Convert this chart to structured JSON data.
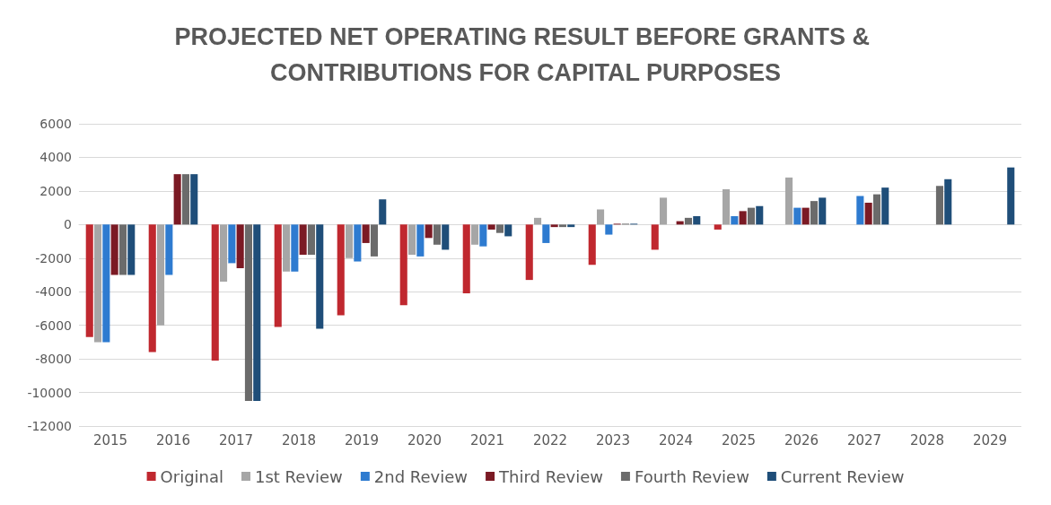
{
  "chart_data": {
    "type": "bar",
    "title": "PROJECTED NET OPERATING RESULT BEFORE GRANTS & CONTRIBUTIONS FOR CAPITAL PURPOSES",
    "categories": [
      "2015",
      "2016",
      "2017",
      "2018",
      "2019",
      "2020",
      "2021",
      "2022",
      "2023",
      "2024",
      "2025",
      "2026",
      "2027",
      "2028",
      "2029"
    ],
    "series": [
      {
        "name": "Original",
        "color": "#c0282f",
        "values": [
          -6700,
          -7600,
          -8100,
          -6100,
          -5400,
          -4800,
          -4100,
          -3300,
          -2400,
          -1500,
          -300,
          null,
          null,
          null,
          null
        ]
      },
      {
        "name": "1st Review",
        "color": "#a6a6a6",
        "values": [
          -7000,
          -6000,
          -3400,
          -2800,
          -2000,
          -1800,
          -1200,
          400,
          900,
          1600,
          2100,
          2800,
          null,
          null,
          null
        ]
      },
      {
        "name": "2nd Review",
        "color": "#2e7bd0",
        "values": [
          -7000,
          -3000,
          -2300,
          -2800,
          -2200,
          -1900,
          -1300,
          -1100,
          -600,
          null,
          500,
          1000,
          1700,
          null,
          null
        ]
      },
      {
        "name": "Third Review",
        "color": "#7b1a24",
        "values": [
          -3000,
          3000,
          -2600,
          -1800,
          -1100,
          -800,
          -300,
          -150,
          50,
          200,
          800,
          1000,
          1300,
          null,
          null
        ]
      },
      {
        "name": "Fourth Review",
        "color": "#6b6b6b",
        "values": [
          -3000,
          3000,
          -10500,
          -1800,
          -1900,
          -1200,
          -500,
          -150,
          50,
          400,
          1000,
          1400,
          1800,
          2300,
          null
        ]
      },
      {
        "name": "Current Review",
        "color": "#1f4e79",
        "values": [
          -3000,
          3000,
          -10500,
          -6200,
          1500,
          -1500,
          -700,
          -150,
          50,
          500,
          1100,
          1600,
          2200,
          2700,
          3400
        ]
      }
    ],
    "ylim": [
      -12000,
      6000
    ],
    "yticks": [
      -12000,
      -10000,
      -8000,
      -6000,
      -4000,
      -2000,
      0,
      2000,
      4000,
      6000
    ],
    "grid": "y",
    "legend": "bottom"
  }
}
